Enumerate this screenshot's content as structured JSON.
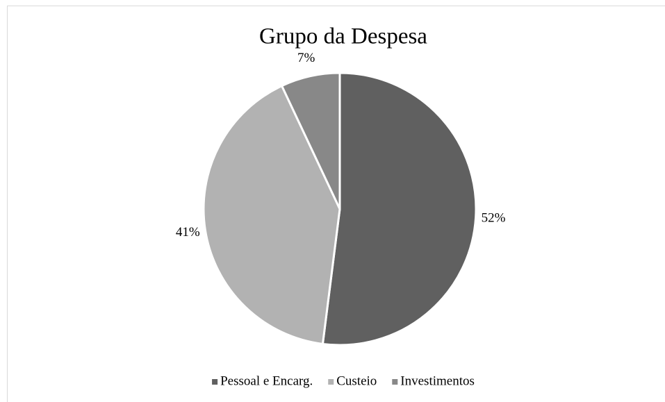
{
  "chart_data": {
    "type": "pie",
    "title": "Grupo da Despesa",
    "categories": [
      "Pessoal e Encarg.",
      "Custeio",
      "Investimentos"
    ],
    "values": [
      52,
      41,
      7
    ],
    "value_labels": [
      "52%",
      "41%",
      "7%"
    ],
    "colors": [
      "#606060",
      "#b2b2b2",
      "#888888"
    ],
    "legend": "bottom"
  }
}
